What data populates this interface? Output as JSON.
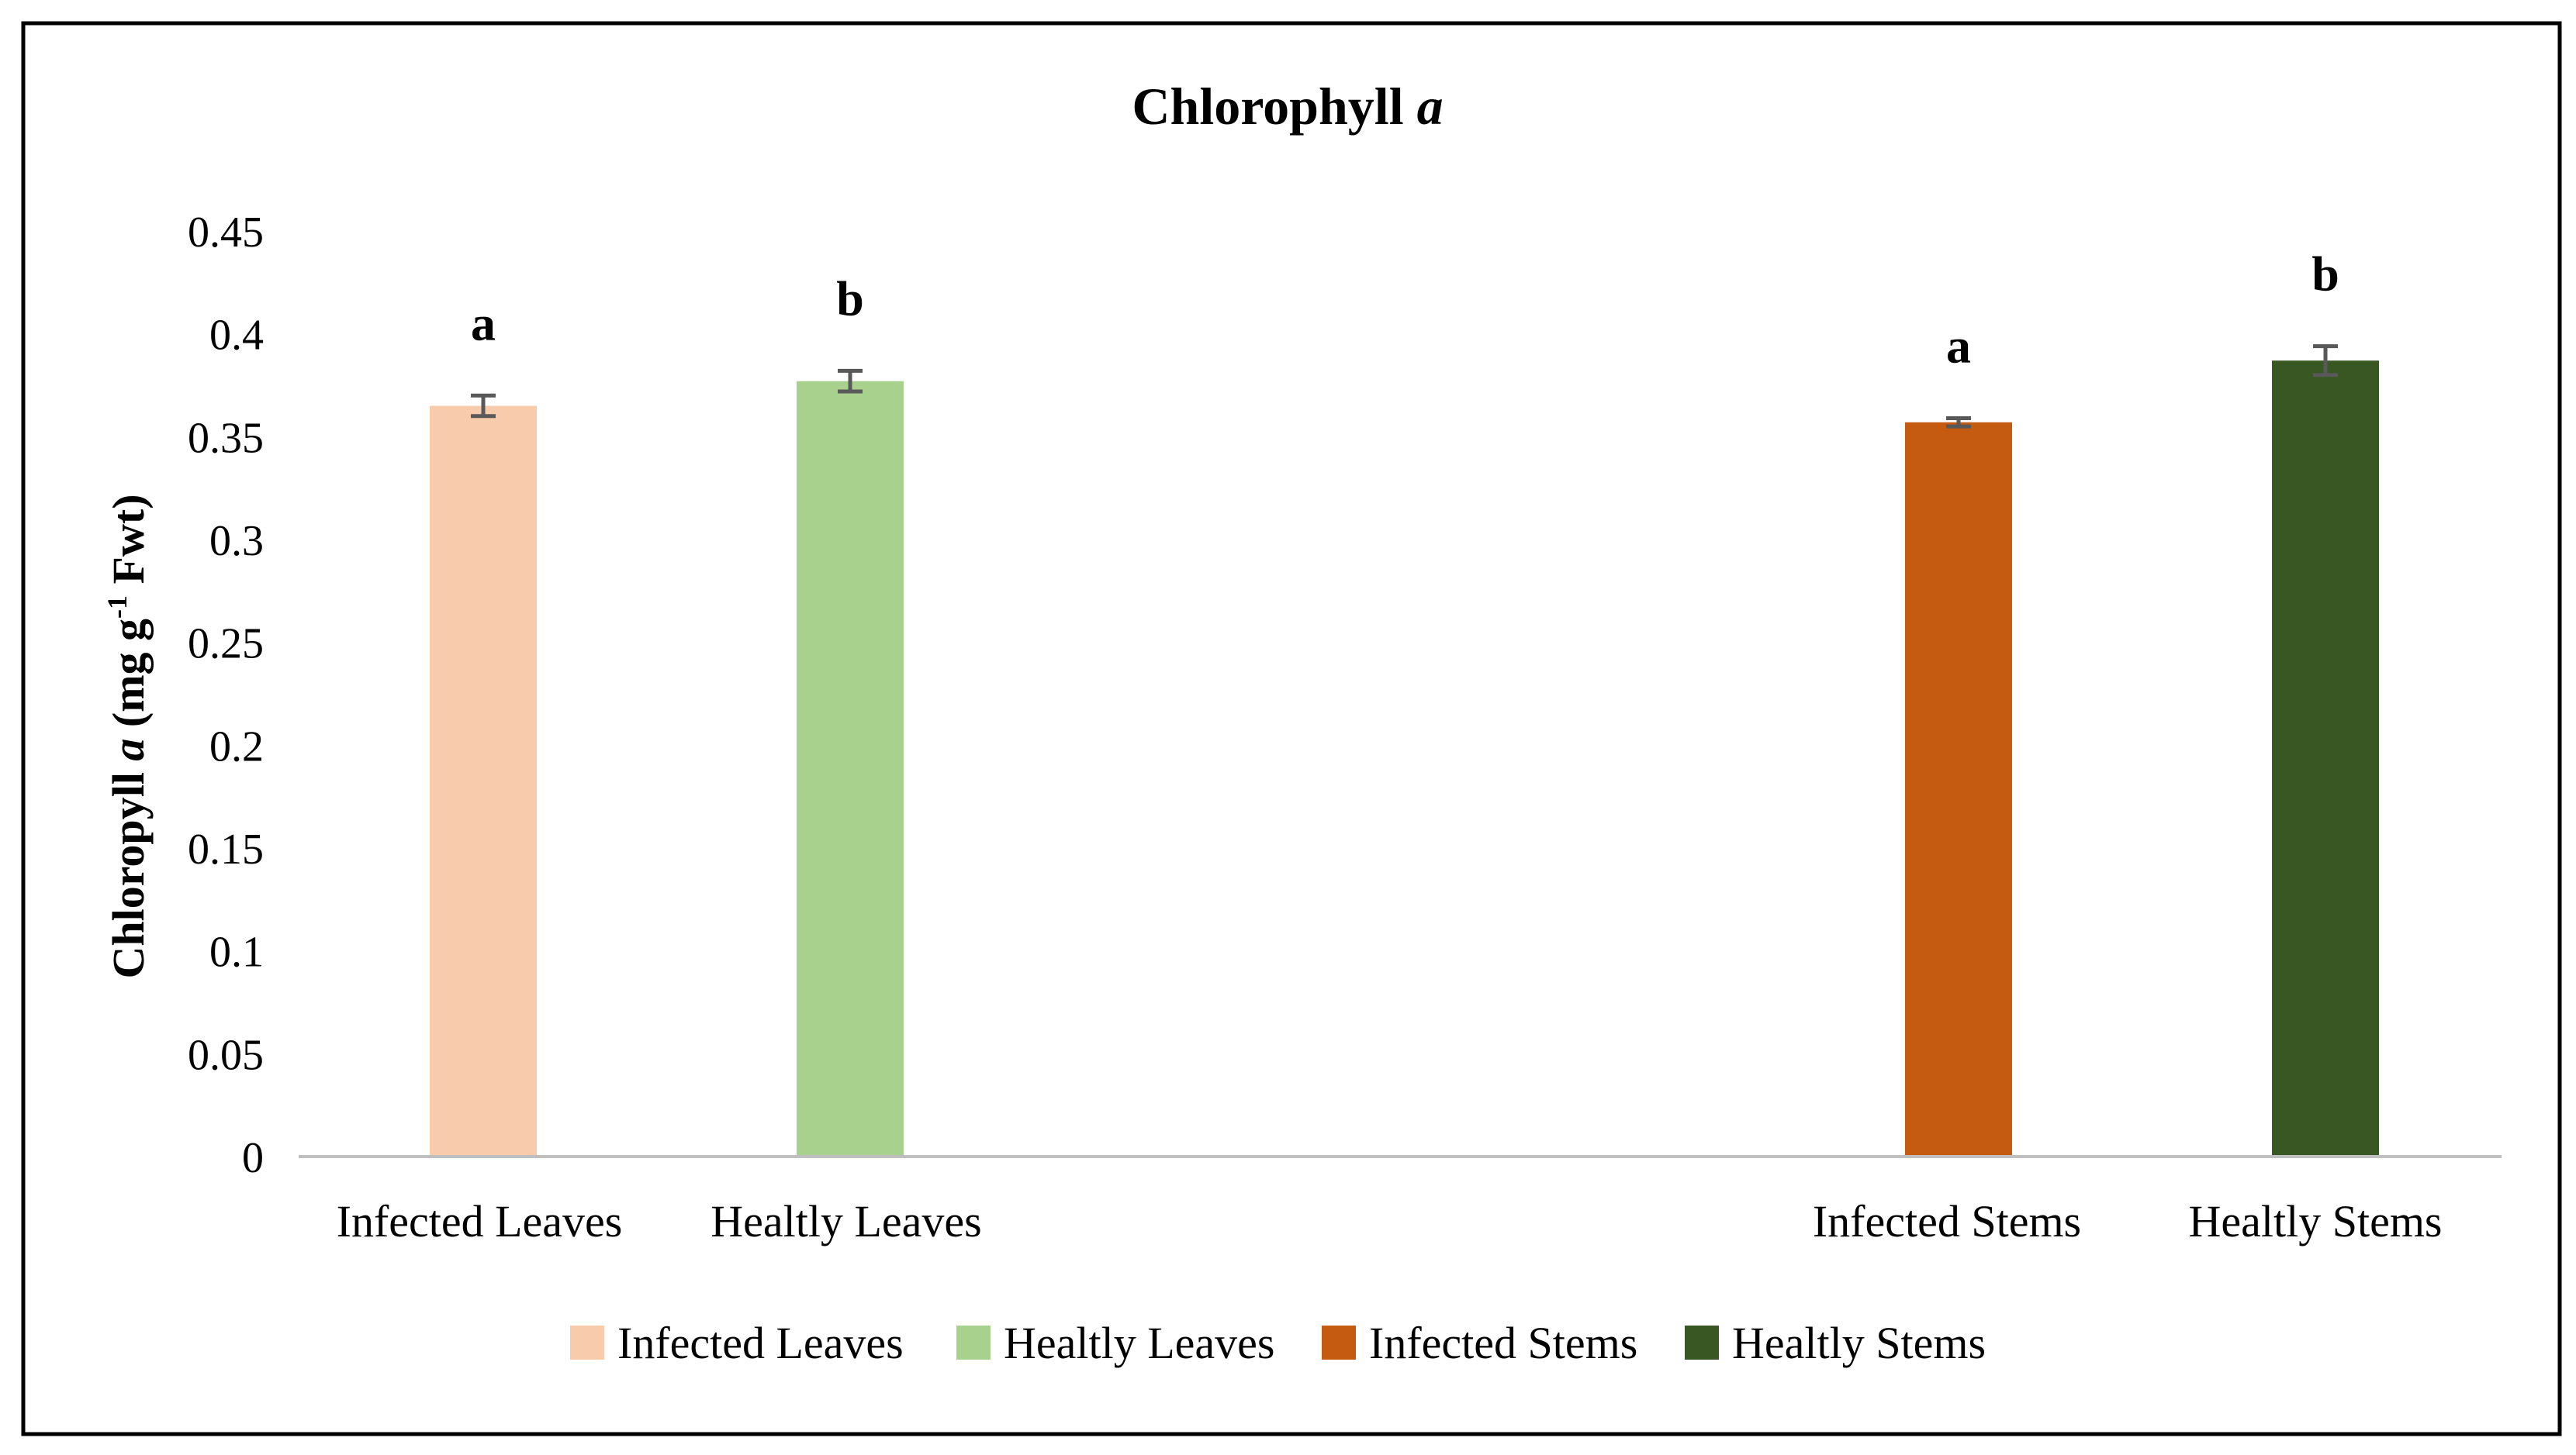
{
  "chart_data": {
    "type": "bar",
    "title": "Chlorophyll",
    "title_italic": "a",
    "ylabel_parts": [
      "Chloropyll ",
      "a",
      " (mg g",
      "-1",
      " Fwt)"
    ],
    "xlabel": "",
    "ylim": [
      0,
      0.45
    ],
    "yticks": [
      0,
      0.05,
      0.1,
      0.15,
      0.2,
      0.25,
      0.3,
      0.35,
      0.4,
      0.45
    ],
    "ytick_labels": [
      "0",
      "0.05",
      "0.1",
      "0.15",
      "0.2",
      "0.25",
      "0.3",
      "0.35",
      "0.4",
      "0.45"
    ],
    "categories": [
      "Infected Leaves",
      "Healtly Leaves",
      "Infected Stems",
      "Healtly Stems"
    ],
    "values": [
      0.365,
      0.377,
      0.357,
      0.387
    ],
    "errors": [
      0.005,
      0.005,
      0.002,
      0.007
    ],
    "significance_letters": [
      "a",
      "b",
      "a",
      "b"
    ],
    "colors": [
      "#F8CBAD",
      "#A9D18E",
      "#C55A11",
      "#385723"
    ],
    "legend": {
      "position": "bottom",
      "entries": [
        "Infected Leaves",
        "Healtly Leaves",
        "Infected Stems",
        "Healtly Stems"
      ]
    },
    "grid": false
  }
}
